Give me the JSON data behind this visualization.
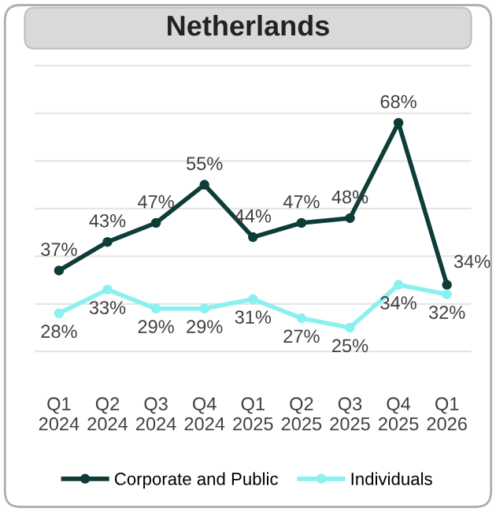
{
  "chart_data": {
    "type": "line",
    "title": "Netherlands",
    "categories": [
      "Q1\n2024",
      "Q2\n2024",
      "Q3\n2024",
      "Q4\n2024",
      "Q1\n2025",
      "Q2\n2025",
      "Q3\n2025",
      "Q4\n2025",
      "Q1\n2026"
    ],
    "series": [
      {
        "name": "Corporate and Public",
        "color": "#0e3d38",
        "values": [
          37,
          43,
          47,
          55,
          44,
          47,
          48,
          68,
          34
        ],
        "value_labels": [
          "37%",
          "43%",
          "47%",
          "55%",
          "44%",
          "47%",
          "48%",
          "68%",
          "34%"
        ]
      },
      {
        "name": "Individuals",
        "color": "#8af0f0",
        "values": [
          28,
          33,
          29,
          29,
          31,
          27,
          25,
          34,
          32
        ],
        "value_labels": [
          "28%",
          "33%",
          "29%",
          "29%",
          "31%",
          "27%",
          "25%",
          "34%",
          "32%"
        ]
      }
    ],
    "tick_labels": "x",
    "grid": "y",
    "legend": "bottom",
    "marker": "circle",
    "line_style": "solid"
  }
}
